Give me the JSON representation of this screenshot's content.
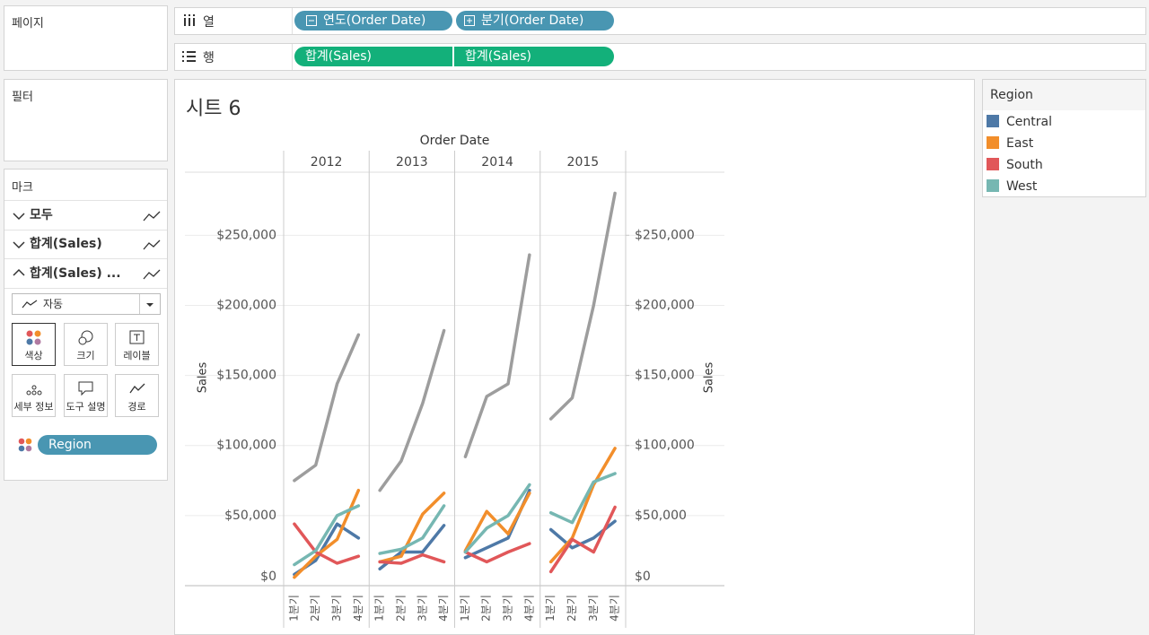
{
  "pages_shelf": {
    "title": "페이지"
  },
  "filters_shelf": {
    "title": "필터"
  },
  "columns_shelf": {
    "label": "열",
    "pills": [
      "연도(Order Date)",
      "분기(Order Date)"
    ]
  },
  "rows_shelf": {
    "label": "행",
    "pills": [
      "합계(Sales)",
      "합계(Sales)"
    ]
  },
  "marks_card": {
    "title": "마크",
    "layers": [
      "모두",
      "합계(Sales)",
      "합계(Sales) ..."
    ],
    "mark_type": "자동",
    "buttons": [
      "색상",
      "크기",
      "레이블",
      "세부 정보",
      "도구 설명",
      "경로"
    ],
    "color_pill": "Region"
  },
  "sheet_title": "시트 6",
  "chart_data": {
    "type": "line",
    "x_title": "Order Date",
    "years": [
      2012,
      2013,
      2014,
      2015
    ],
    "quarters": [
      "1분기",
      "2분기",
      "3분기",
      "4분기"
    ],
    "y_title": "Sales",
    "y2_title": "Sales",
    "ylim": [
      0,
      295000
    ],
    "yticks": [
      {
        "value": 0,
        "label": "$0"
      },
      {
        "value": 50000,
        "label": "$50,000"
      },
      {
        "value": 100000,
        "label": "$100,000"
      },
      {
        "value": 150000,
        "label": "$150,000"
      },
      {
        "value": 200000,
        "label": "$200,000"
      },
      {
        "value": 250000,
        "label": "$250,000"
      }
    ],
    "y2lim": [
      0,
      295000
    ],
    "y2ticks": [
      {
        "value": 0,
        "label": "$0"
      },
      {
        "value": 50000,
        "label": "$50,000"
      },
      {
        "value": 100000,
        "label": "$100,000"
      },
      {
        "value": 150000,
        "label": "$150,000"
      },
      {
        "value": 200000,
        "label": "$200,000"
      },
      {
        "value": 250000,
        "label": "$250,000"
      }
    ],
    "grid": true,
    "legend_title": "Region",
    "legend": "right",
    "series": [
      {
        "name": "Central",
        "color": "#4e79a7",
        "values": [
          8000,
          18000,
          44000,
          34000,
          12000,
          24000,
          24000,
          43000,
          20000,
          27000,
          34000,
          68000,
          40000,
          27000,
          34000,
          46000
        ]
      },
      {
        "name": "East",
        "color": "#f28e2b",
        "values": [
          6000,
          21000,
          33000,
          68000,
          17000,
          21000,
          51000,
          66000,
          25000,
          53000,
          37000,
          66000,
          17000,
          34000,
          72000,
          98000
        ]
      },
      {
        "name": "South",
        "color": "#e15759",
        "values": [
          44000,
          24000,
          16000,
          21000,
          17000,
          16000,
          22000,
          17000,
          24000,
          17000,
          24000,
          30000,
          10000,
          33000,
          24000,
          56000
        ]
      },
      {
        "name": "West",
        "color": "#76b7b2",
        "values": [
          15000,
          25000,
          50000,
          57000,
          23000,
          26000,
          34000,
          57000,
          24000,
          41000,
          50000,
          72000,
          52000,
          45000,
          74000,
          80000
        ]
      },
      {
        "color": "#9d9d9d",
        "axis": "y2",
        "values": [
          75000,
          86000,
          144000,
          179000,
          68000,
          89000,
          130000,
          182000,
          92000,
          135000,
          144000,
          236000,
          119000,
          134000,
          200000,
          280000
        ]
      }
    ]
  }
}
